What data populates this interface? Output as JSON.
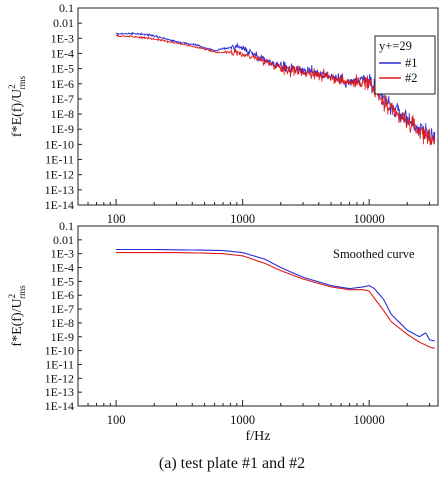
{
  "chart_data": [
    {
      "type": "line",
      "title": "",
      "xlabel": "",
      "ylabel": "f*E(f)/U",
      "ylabel_sup": "2",
      "ylabel_sub": "rms",
      "xscale": "log",
      "yscale": "log",
      "xlim": [
        50,
        35000
      ],
      "ylim": [
        1e-14,
        0.1
      ],
      "xticks": [
        100,
        1000,
        10000
      ],
      "xtick_labels": [
        "100",
        "1000",
        "10000"
      ],
      "ytick_labels": [
        "1E-14",
        "1E-13",
        "1E-12",
        "1E-11",
        "1E-10",
        "1E-9",
        "1E-8",
        "1E-7",
        "1E-6",
        "1E-5",
        "1E-4",
        "1E-3",
        "0.01",
        "0.1"
      ],
      "legend": {
        "title": "y+=29",
        "placement": "top-right"
      },
      "series": [
        {
          "name": "#1",
          "color": "#2b2bd6",
          "noisy": true,
          "x": [
            100,
            150,
            200,
            300,
            400,
            500,
            600,
            700,
            800,
            900,
            1000,
            1200,
            1500,
            2000,
            3000,
            4000,
            5000,
            6000,
            7000,
            8000,
            9000,
            10000,
            12000,
            15000,
            20000,
            25000,
            30000,
            33000
          ],
          "y": [
            0.002,
            0.002,
            0.0015,
            0.0006,
            0.0004,
            0.00025,
            0.00015,
            0.0002,
            0.00025,
            0.0003,
            0.00022,
            0.0001,
            4e-05,
            1.5e-05,
            8e-06,
            5e-06,
            3e-06,
            2e-06,
            1.2e-06,
            1.5e-06,
            2e-06,
            1.5e-06,
            2e-07,
            3e-08,
            5e-09,
            1e-09,
            5e-10,
            3e-10
          ]
        },
        {
          "name": "#2",
          "color": "#e01b1b",
          "noisy": true,
          "x": [
            100,
            150,
            200,
            300,
            400,
            500,
            600,
            700,
            800,
            900,
            1000,
            1200,
            1500,
            2000,
            3000,
            4000,
            5000,
            6000,
            7000,
            8000,
            9000,
            10000,
            12000,
            15000,
            20000,
            25000,
            30000,
            33000
          ],
          "y": [
            0.0015,
            0.0012,
            0.0009,
            0.0005,
            0.0003,
            0.0002,
            0.00012,
            0.00012,
            0.00012,
            0.0001,
            9e-05,
            6e-05,
            3e-05,
            1.2e-05,
            6e-06,
            4e-06,
            2.5e-06,
            1.8e-06,
            1.2e-06,
            1.2e-06,
            1.5e-06,
            1e-06,
            1.2e-07,
            1.5e-08,
            3e-09,
            8e-10,
            3e-10,
            2e-10
          ]
        }
      ]
    },
    {
      "type": "line",
      "title": "",
      "xlabel": "f/Hz",
      "ylabel": "f*E(f)/U",
      "ylabel_sup": "2",
      "ylabel_sub": "rms",
      "xscale": "log",
      "yscale": "log",
      "xlim": [
        50,
        35000
      ],
      "ylim": [
        1e-14,
        0.1
      ],
      "xticks": [
        100,
        1000,
        10000
      ],
      "xtick_labels": [
        "100",
        "1000",
        "10000"
      ],
      "ytick_labels": [
        "1E-14",
        "1E-13",
        "1E-12",
        "1E-11",
        "1E-10",
        "1E-9",
        "1E-8",
        "1E-7",
        "1E-6",
        "1E-5",
        "1E-4",
        "1E-3",
        "0.01",
        "0.1"
      ],
      "annotation": "Smoothed curve",
      "series": [
        {
          "name": "#1",
          "color": "#2b2bd6",
          "noisy": false,
          "x": [
            100,
            200,
            300,
            500,
            700,
            1000,
            1500,
            2000,
            3000,
            5000,
            7000,
            9000,
            10000,
            11000,
            13000,
            15000,
            20000,
            25000,
            28000,
            30000,
            33000
          ],
          "y": [
            0.002,
            0.002,
            0.0019,
            0.0018,
            0.0017,
            0.0012,
            0.0004,
            0.0001,
            2e-05,
            5e-06,
            3e-06,
            4e-06,
            5e-06,
            3e-06,
            5e-07,
            4e-08,
            3e-09,
            1e-09,
            2e-09,
            6e-10,
            5e-10
          ]
        },
        {
          "name": "#2",
          "color": "#e01b1b",
          "noisy": false,
          "x": [
            100,
            200,
            300,
            500,
            700,
            1000,
            1500,
            2000,
            3000,
            5000,
            7000,
            9000,
            10000,
            11000,
            13000,
            15000,
            20000,
            25000,
            28000,
            30000,
            33000
          ],
          "y": [
            0.0012,
            0.0012,
            0.0012,
            0.0011,
            0.001,
            0.0007,
            0.0002,
            6e-05,
            1.5e-05,
            4e-06,
            2.5e-06,
            2.5e-06,
            2e-06,
            6e-07,
            8e-08,
            1.2e-08,
            1.5e-09,
            4e-10,
            2.5e-10,
            1.8e-10,
            1.5e-10
          ]
        }
      ]
    }
  ],
  "caption": "(a) test plate #1 and #2"
}
